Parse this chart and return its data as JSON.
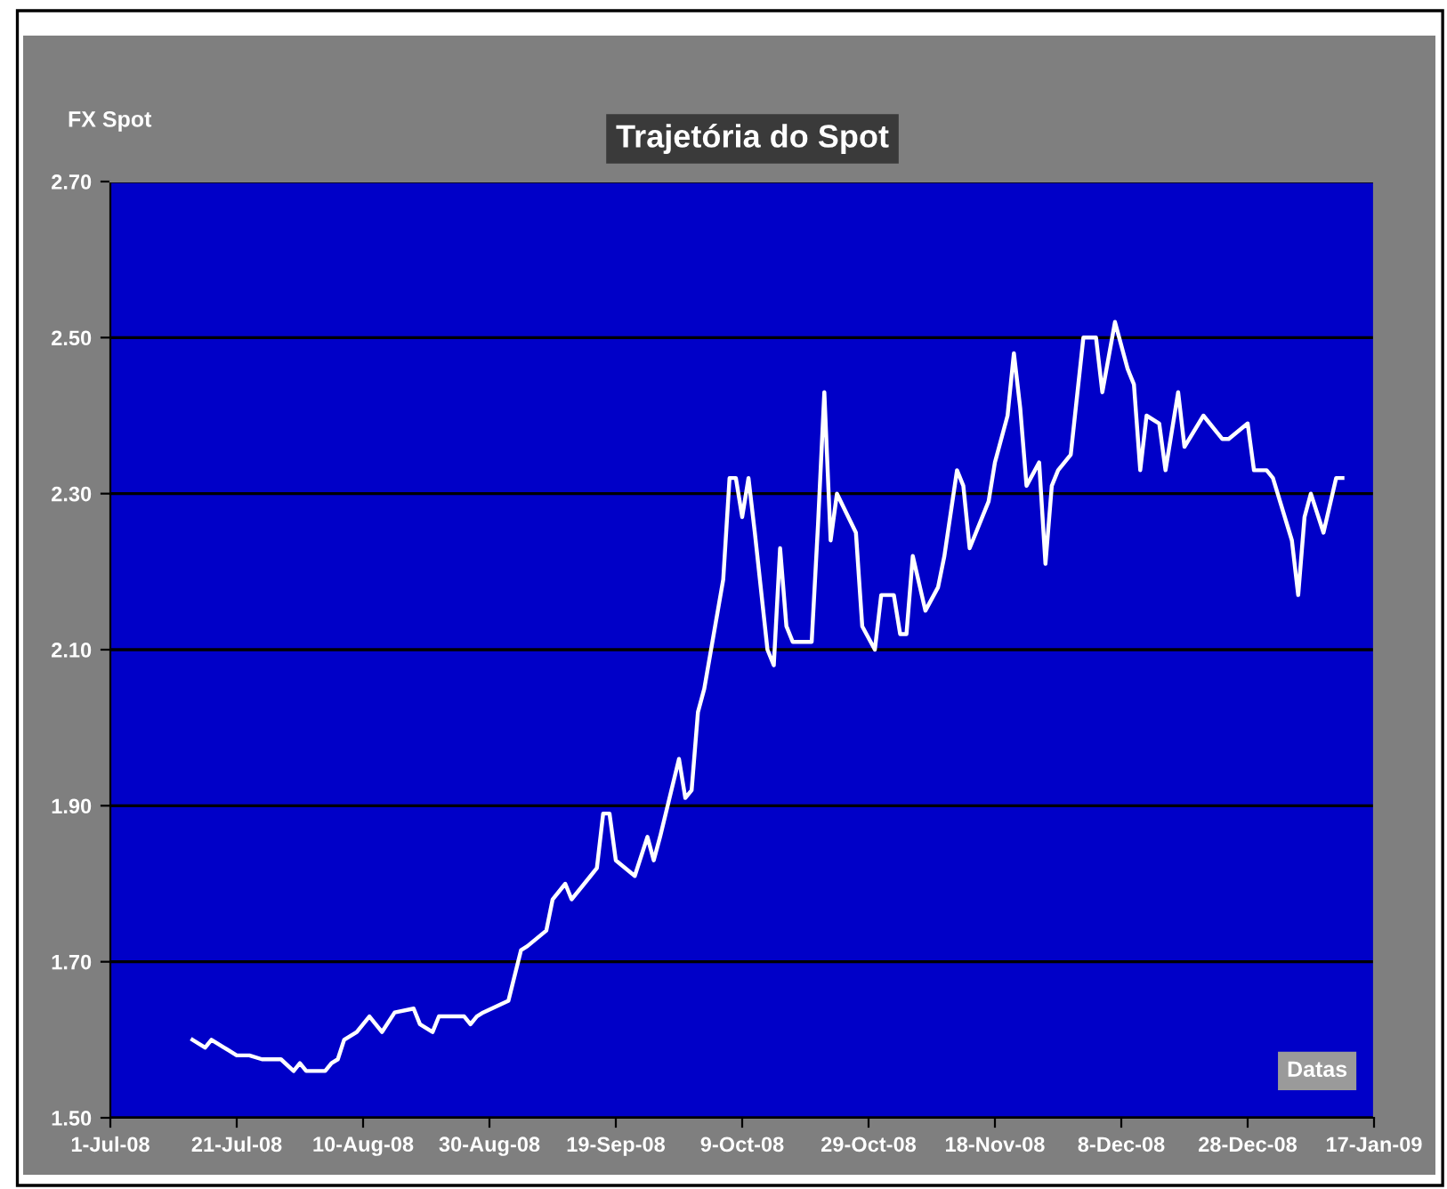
{
  "chart_data": {
    "type": "line",
    "title": "Trajetória do Spot",
    "ylabel": "FX Spot",
    "xlabel": "Datas",
    "x": [
      "2008-07-14",
      "2008-07-16",
      "2008-07-17",
      "2008-07-19",
      "2008-07-21",
      "2008-07-23",
      "2008-07-25",
      "2008-07-28",
      "2008-07-30",
      "2008-07-31",
      "2008-08-01",
      "2008-08-04",
      "2008-08-05",
      "2008-08-06",
      "2008-08-07",
      "2008-08-09",
      "2008-08-11",
      "2008-08-13",
      "2008-08-15",
      "2008-08-18",
      "2008-08-19",
      "2008-08-21",
      "2008-08-22",
      "2008-08-26",
      "2008-08-27",
      "2008-08-28",
      "2008-08-29",
      "2008-09-02",
      "2008-09-04",
      "2008-09-05",
      "2008-09-08",
      "2008-09-09",
      "2008-09-11",
      "2008-09-12",
      "2008-09-15",
      "2008-09-16",
      "2008-09-17",
      "2008-09-18",
      "2008-09-19",
      "2008-09-22",
      "2008-09-24",
      "2008-09-25",
      "2008-09-26",
      "2008-09-29",
      "2008-09-30",
      "2008-10-01",
      "2008-10-02",
      "2008-10-03",
      "2008-10-06",
      "2008-10-07",
      "2008-10-08",
      "2008-10-09",
      "2008-10-10",
      "2008-10-11",
      "2008-10-13",
      "2008-10-14",
      "2008-10-15",
      "2008-10-16",
      "2008-10-17",
      "2008-10-20",
      "2008-10-21",
      "2008-10-22",
      "2008-10-23",
      "2008-10-24",
      "2008-10-27",
      "2008-10-28",
      "2008-10-30",
      "2008-10-31",
      "2008-11-02",
      "2008-11-03",
      "2008-11-04",
      "2008-11-05",
      "2008-11-07",
      "2008-11-09",
      "2008-11-10",
      "2008-11-12",
      "2008-11-13",
      "2008-11-14",
      "2008-11-17",
      "2008-11-18",
      "2008-11-20",
      "2008-11-21",
      "2008-11-22",
      "2008-11-23",
      "2008-11-25",
      "2008-11-26",
      "2008-11-27",
      "2008-11-28",
      "2008-11-30",
      "2008-12-02",
      "2008-12-04",
      "2008-12-05",
      "2008-12-07",
      "2008-12-09",
      "2008-12-10",
      "2008-12-11",
      "2008-12-12",
      "2008-12-14",
      "2008-12-15",
      "2008-12-17",
      "2008-12-18",
      "2008-12-21",
      "2008-12-23",
      "2008-12-24",
      "2008-12-25",
      "2008-12-28",
      "2008-12-29",
      "2008-12-31",
      "2009-01-01",
      "2009-01-04",
      "2009-01-05",
      "2009-01-06",
      "2009-01-07",
      "2009-01-09",
      "2009-01-11",
      "2009-01-12"
    ],
    "series": [
      {
        "color": "#ffffff",
        "values": [
          1.6,
          1.59,
          1.6,
          1.59,
          1.58,
          1.58,
          1.575,
          1.575,
          1.56,
          1.57,
          1.56,
          1.56,
          1.57,
          1.575,
          1.6,
          1.61,
          1.63,
          1.61,
          1.635,
          1.64,
          1.62,
          1.61,
          1.63,
          1.63,
          1.62,
          1.63,
          1.635,
          1.65,
          1.715,
          1.72,
          1.74,
          1.78,
          1.8,
          1.78,
          1.81,
          1.82,
          1.89,
          1.89,
          1.83,
          1.81,
          1.86,
          1.83,
          1.86,
          1.96,
          1.91,
          1.92,
          2.02,
          2.05,
          2.19,
          2.32,
          2.32,
          2.27,
          2.32,
          2.25,
          2.1,
          2.08,
          2.23,
          2.13,
          2.11,
          2.11,
          2.26,
          2.43,
          2.24,
          2.3,
          2.25,
          2.13,
          2.1,
          2.17,
          2.17,
          2.12,
          2.12,
          2.22,
          2.15,
          2.18,
          2.22,
          2.33,
          2.31,
          2.23,
          2.29,
          2.34,
          2.4,
          2.48,
          2.41,
          2.31,
          2.34,
          2.21,
          2.31,
          2.33,
          2.35,
          2.5,
          2.5,
          2.43,
          2.52,
          2.46,
          2.44,
          2.33,
          2.4,
          2.39,
          2.33,
          2.43,
          2.36,
          2.4,
          2.38,
          2.37,
          2.37,
          2.39,
          2.33,
          2.33,
          2.32,
          2.24,
          2.17,
          2.27,
          2.3,
          2.25,
          2.32,
          2.32
        ]
      }
    ],
    "xlim": [
      "2008-07-01",
      "2009-01-17"
    ],
    "xticks": [
      {
        "value": "2008-07-01",
        "label": "1-Jul-08"
      },
      {
        "value": "2008-07-21",
        "label": "21-Jul-08"
      },
      {
        "value": "2008-08-10",
        "label": "10-Aug-08"
      },
      {
        "value": "2008-08-30",
        "label": "30-Aug-08"
      },
      {
        "value": "2008-09-19",
        "label": "19-Sep-08"
      },
      {
        "value": "2008-10-09",
        "label": "9-Oct-08"
      },
      {
        "value": "2008-10-29",
        "label": "29-Oct-08"
      },
      {
        "value": "2008-11-18",
        "label": "18-Nov-08"
      },
      {
        "value": "2008-12-08",
        "label": "8-Dec-08"
      },
      {
        "value": "2008-12-28",
        "label": "28-Dec-08"
      },
      {
        "value": "2009-01-17",
        "label": "17-Jan-09"
      }
    ],
    "ylim": [
      1.5,
      2.7
    ],
    "yticks": [
      {
        "value": 1.5,
        "label": "1.50"
      },
      {
        "value": 1.7,
        "label": "1.70"
      },
      {
        "value": 1.9,
        "label": "1.90"
      },
      {
        "value": 2.1,
        "label": "2.10"
      },
      {
        "value": 2.3,
        "label": "2.30"
      },
      {
        "value": 2.5,
        "label": "2.50"
      },
      {
        "value": 2.7,
        "label": "2.70"
      }
    ],
    "grid": "y",
    "marker": "none",
    "line_style": "solid"
  }
}
